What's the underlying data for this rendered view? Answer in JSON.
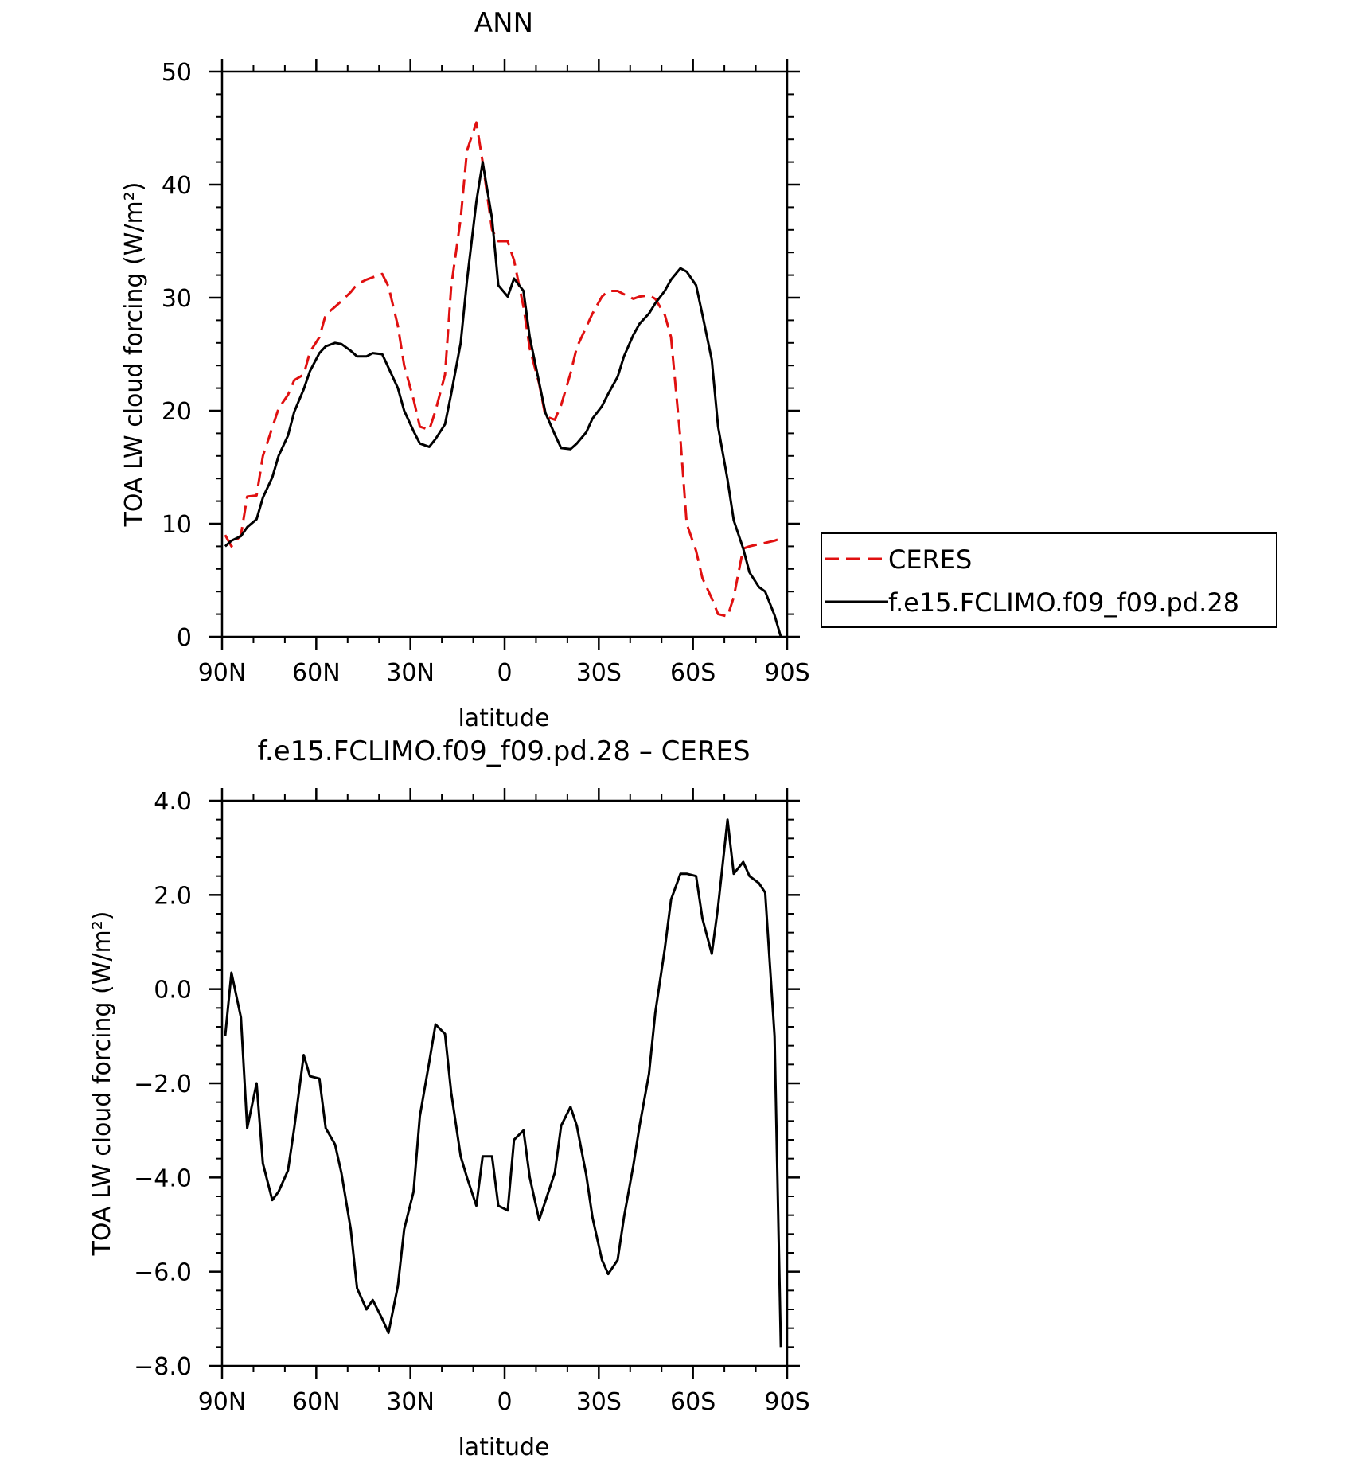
{
  "chart_data": [
    {
      "type": "line",
      "title": "ANN",
      "xlabel": "latitude",
      "ylabel": "TOA LW cloud forcing (W/m²)",
      "xlim": [
        90,
        -90
      ],
      "ylim": [
        0,
        50
      ],
      "x_ticks": [
        90,
        60,
        30,
        0,
        -30,
        -60,
        -90
      ],
      "x_tick_labels": [
        "90N",
        "60N",
        "30N",
        "0",
        "30S",
        "60S",
        "90S"
      ],
      "y_ticks": [
        0,
        10,
        20,
        30,
        40,
        50
      ],
      "y_tick_labels": [
        "0",
        "10",
        "20",
        "30",
        "40",
        "50"
      ],
      "legend": "right",
      "series": [
        {
          "name": "CERES",
          "color": "#e01010",
          "dash": "dashed",
          "x": [
            89,
            87,
            84,
            82,
            79,
            77,
            74,
            72,
            69,
            67,
            64,
            62,
            59,
            57,
            54,
            52,
            49,
            47,
            44,
            42,
            39,
            37,
            34,
            32,
            29,
            27,
            24,
            22,
            19,
            17,
            14,
            12,
            9,
            7,
            4,
            2,
            -1,
            -3,
            -6,
            -8,
            -11,
            -13,
            -16,
            -18,
            -21,
            -23,
            -26,
            -28,
            -31,
            -33,
            -36,
            -38,
            -41,
            -43,
            -46,
            -48,
            -51,
            -53,
            -56,
            -58,
            -61,
            -63,
            -66,
            -68,
            -71,
            -73,
            -76,
            -78,
            -81,
            -83,
            -86,
            -88
          ],
          "y": [
            9,
            8,
            9,
            12.4,
            12.5,
            16,
            18.5,
            20.2,
            21.4,
            22.7,
            23.2,
            25.2,
            26.5,
            28.5,
            29.2,
            29.7,
            30.5,
            31.2,
            31.6,
            31.8,
            32.1,
            31,
            27.5,
            24,
            21,
            18.6,
            18.3,
            20,
            23.2,
            31,
            37,
            43,
            45.5,
            42,
            36,
            35,
            35,
            33.3,
            29.2,
            25.5,
            22.4,
            19.5,
            19.2,
            20.5,
            23.3,
            25.6,
            27.4,
            28.6,
            30.1,
            30.6,
            30.6,
            30.3,
            29.9,
            30.1,
            30.2,
            29.9,
            28.5,
            26.5,
            17.5,
            10,
            7.6,
            5.2,
            3.4,
            2,
            1.8,
            3.5,
            7.8,
            8,
            8.2,
            8.3,
            8.5,
            8.7
          ]
        },
        {
          "name": "f.e15.FCLIMO.f09_f09.pd.28",
          "color": "#000000",
          "dash": "solid",
          "x": [
            89,
            87,
            84,
            82,
            79,
            77,
            74,
            72,
            69,
            67,
            64,
            62,
            59,
            57,
            54,
            52,
            49,
            47,
            44,
            42,
            39,
            37,
            34,
            32,
            29,
            27,
            24,
            22,
            19,
            17,
            14,
            12,
            9,
            7,
            4,
            2,
            -1,
            -3,
            -6,
            -8,
            -11,
            -13,
            -16,
            -18,
            -21,
            -23,
            -26,
            -28,
            -31,
            -33,
            -36,
            -38,
            -41,
            -43,
            -46,
            -48,
            -51,
            -53,
            -56,
            -58,
            -61,
            -63,
            -66,
            -68,
            -71,
            -73,
            -76,
            -78,
            -81,
            -83,
            -86,
            -88
          ],
          "y": [
            8,
            8.5,
            8.9,
            9.7,
            10.4,
            12.3,
            14.1,
            16,
            17.8,
            19.9,
            21.9,
            23.5,
            25.1,
            25.7,
            26,
            25.9,
            25.3,
            24.8,
            24.8,
            25.1,
            25,
            23.8,
            22,
            20,
            18.2,
            17.1,
            16.8,
            17.5,
            18.8,
            21.5,
            26,
            31.5,
            38.5,
            42,
            37,
            31.1,
            30.1,
            31.7,
            30.6,
            26.5,
            22.5,
            19.8,
            17.9,
            16.7,
            16.6,
            17.1,
            18.1,
            19.3,
            20.4,
            21.5,
            23,
            24.8,
            26.7,
            27.7,
            28.6,
            29.5,
            30.6,
            31.6,
            32.6,
            32.3,
            31.1,
            28.5,
            24.5,
            18.6,
            13.9,
            10.3,
            7.8,
            5.7,
            4.4,
            4,
            1.9,
            0
          ]
        }
      ]
    },
    {
      "type": "line",
      "title": "f.e15.FCLIMO.f09_f09.pd.28 – CERES",
      "xlabel": "latitude",
      "ylabel": "TOA LW cloud forcing (W/m²)",
      "xlim": [
        90,
        -90
      ],
      "ylim": [
        -8,
        4
      ],
      "x_ticks": [
        90,
        60,
        30,
        0,
        -30,
        -60,
        -90
      ],
      "x_tick_labels": [
        "90N",
        "60N",
        "30N",
        "0",
        "30S",
        "60S",
        "90S"
      ],
      "y_ticks": [
        -8,
        -6,
        -4,
        -2,
        0,
        2,
        4
      ],
      "y_tick_labels": [
        "−8.0",
        "−6.0",
        "−4.0",
        "−2.0",
        "0.0",
        "2.0",
        "4.0"
      ],
      "series": [
        {
          "color": "#000000",
          "dash": "solid",
          "x": [
            89,
            87,
            84,
            82,
            79,
            77,
            74,
            72,
            69,
            67,
            64,
            62,
            59,
            57,
            54,
            52,
            49,
            47,
            44,
            42,
            39,
            37,
            34,
            32,
            29,
            27,
            24,
            22,
            19,
            17,
            14,
            12,
            9,
            7,
            4,
            2,
            -1,
            -3,
            -6,
            -8,
            -11,
            -13,
            -16,
            -18,
            -21,
            -23,
            -26,
            -28,
            -31,
            -33,
            -36,
            -38,
            -41,
            -43,
            -46,
            -48,
            -51,
            -53,
            -56,
            -58,
            -61,
            -63,
            -66,
            -68,
            -71,
            -73,
            -76,
            -78,
            -81,
            -83,
            -86,
            -88
          ],
          "y": [
            -1,
            0.35,
            -0.6,
            -2.95,
            -2,
            -3.7,
            -4.48,
            -4.3,
            -3.85,
            -2.95,
            -1.4,
            -1.85,
            -1.9,
            -2.95,
            -3.3,
            -3.9,
            -5.1,
            -6.35,
            -6.8,
            -6.6,
            -7.0,
            -7.3,
            -6.3,
            -5.1,
            -4.3,
            -2.7,
            -1.55,
            -0.75,
            -0.95,
            -2.2,
            -3.55,
            -4.0,
            -4.6,
            -3.55,
            -3.55,
            -4.6,
            -4.7,
            -3.2,
            -3.0,
            -4.0,
            -4.9,
            -4.5,
            -3.9,
            -2.9,
            -2.5,
            -2.9,
            -3.95,
            -4.85,
            -5.75,
            -6.05,
            -5.75,
            -4.85,
            -3.75,
            -2.9,
            -1.8,
            -0.5,
            0.85,
            1.9,
            2.45,
            2.45,
            2.4,
            1.5,
            0.75,
            1.75,
            3.6,
            2.45,
            2.7,
            2.4,
            2.25,
            2.05,
            -1,
            -7.6
          ]
        }
      ]
    }
  ]
}
